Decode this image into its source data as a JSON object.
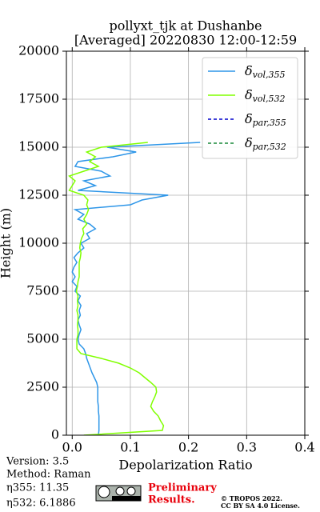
{
  "chart_data": {
    "type": "profile",
    "title": "pollyxt_tjk at Dushanbe",
    "subtitle": "[Averaged] 20220830 12:00-12:59",
    "xlabel": "Depolarization Ratio",
    "ylabel": "Height (m)",
    "xlim": [
      -0.01,
      0.4
    ],
    "xticks": [
      {
        "value": 0,
        "label": "0.0"
      },
      0.1,
      0.2,
      0.3,
      0.4
    ],
    "ylim": [
      0,
      20000
    ],
    "yticks": [
      0,
      2500,
      5000,
      7500,
      10000,
      12500,
      15000,
      17500,
      20000
    ],
    "grid": true,
    "legend": "upper right",
    "heights": [
      0,
      250,
      500,
      750,
      1000,
      1250,
      1500,
      1750,
      2000,
      2250,
      2500,
      2750,
      3000,
      3250,
      3500,
      3750,
      4000,
      4250,
      4500,
      4750,
      5000,
      5250,
      5500,
      5750,
      6000,
      6250,
      6500,
      6750,
      7000,
      7250,
      7500,
      7750,
      8000,
      8250,
      8500,
      8750,
      9000,
      9250,
      9500,
      9750,
      10000,
      10250,
      10500,
      10750,
      11000,
      11250,
      11500,
      11750,
      12000,
      12250,
      12500,
      12750,
      13000,
      13250,
      13500,
      13750,
      14000,
      14250,
      14500,
      14750,
      15000,
      15250
    ],
    "series": [
      {
        "name": "δvol,355",
        "color": "#2e96e8",
        "dash": false,
        "values": [
          0.045,
          0.046,
          0.046,
          0.046,
          0.046,
          0.045,
          0.045,
          0.044,
          0.044,
          0.044,
          0.044,
          0.042,
          0.038,
          0.034,
          0.031,
          0.028,
          0.025,
          0.023,
          0.02,
          0.012,
          0.01,
          0.012,
          0.015,
          0.012,
          0.01,
          0.014,
          0.012,
          0.015,
          0.01,
          0.014,
          0.005,
          0.008,
          0.0,
          0.005,
          0.0,
          0.003,
          0.008,
          0.003,
          0.01,
          0.02,
          0.015,
          0.03,
          0.025,
          0.04,
          0.03,
          0.01,
          0.02,
          0.005,
          0.1,
          0.12,
          0.165,
          0.01,
          0.04,
          0.02,
          0.065,
          0.05,
          0.005,
          0.01,
          0.07,
          0.11,
          0.06,
          0.22
        ]
      },
      {
        "name": "δvol,532",
        "color": "#80ff00",
        "dash": false,
        "values": [
          0.02,
          0.155,
          0.157,
          0.152,
          0.148,
          0.14,
          0.135,
          0.138,
          0.142,
          0.145,
          0.144,
          0.135,
          0.125,
          0.115,
          0.1,
          0.08,
          0.05,
          0.015,
          0.008,
          0.008,
          0.008,
          0.01,
          0.01,
          0.009,
          0.01,
          0.01,
          0.008,
          0.01,
          0.009,
          0.01,
          0.007,
          0.009,
          0.01,
          0.012,
          0.012,
          0.012,
          0.012,
          0.014,
          0.015,
          0.013,
          0.014,
          0.016,
          0.02,
          0.018,
          0.025,
          0.02,
          0.025,
          0.028,
          0.025,
          0.027,
          0.02,
          -0.005,
          0.0,
          0.005,
          -0.005,
          0.02,
          0.045,
          0.03,
          0.04,
          0.025,
          0.05,
          0.13
        ]
      },
      {
        "name": "δpar,355",
        "color": "#0000cc",
        "dash": true,
        "values": [
          null,
          null,
          null,
          null,
          null,
          null,
          null,
          null,
          null,
          null,
          null,
          null,
          null,
          null,
          null,
          null,
          null,
          null,
          null,
          null,
          null,
          null,
          null,
          null,
          null,
          null,
          null,
          null,
          null,
          null,
          null,
          null,
          null,
          null,
          null,
          null,
          null,
          null,
          null,
          null,
          null,
          null,
          null,
          null,
          null,
          null,
          null,
          null,
          null,
          null,
          null,
          null,
          null,
          null,
          null,
          null,
          null,
          null,
          null,
          null,
          null,
          null
        ]
      },
      {
        "name": "δpar,532",
        "color": "#1a8a3a",
        "dash": true,
        "values": [
          null,
          null,
          null,
          null,
          null,
          null,
          null,
          null,
          null,
          null,
          null,
          null,
          null,
          null,
          null,
          null,
          null,
          null,
          null,
          null,
          null,
          null,
          null,
          null,
          null,
          null,
          null,
          null,
          null,
          null,
          null,
          null,
          null,
          null,
          null,
          null,
          null,
          null,
          null,
          null,
          null,
          null,
          null,
          null,
          null,
          null,
          null,
          null,
          null,
          null,
          null,
          null,
          null,
          null,
          null,
          null,
          null,
          null,
          null,
          null,
          null,
          null
        ]
      }
    ],
    "info": [
      "Version: 3.5",
      "Method: Raman",
      "η355:  11.35",
      "η532: 6.1886"
    ],
    "notice": [
      "Preliminary",
      "Results."
    ],
    "copyright": [
      "© TROPOS 2022.",
      "CC BY SA 4.0 License."
    ]
  }
}
